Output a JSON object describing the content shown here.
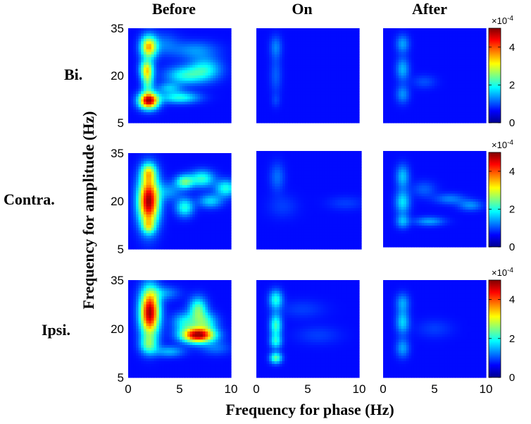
{
  "column_titles": [
    "Before",
    "On",
    "After"
  ],
  "row_labels": [
    "Bi.",
    "Contra.",
    "Ipsi."
  ],
  "xlabel": "Frequency for phase (Hz)",
  "ylabel": "Frequency for amplitude (Hz)",
  "colorbar": {
    "multiplier": "×10",
    "exponent": "-4",
    "ticks": [
      "0",
      "2",
      "4"
    ]
  },
  "x_tick_labels": [
    "0",
    "5",
    "10"
  ],
  "y_tick_labels": [
    "35",
    "20",
    "5"
  ],
  "chart_data": {
    "type": "heatmap",
    "x_range": [
      0,
      10
    ],
    "y_range": [
      5,
      35
    ],
    "color_range": [
      0,
      0.0005
    ],
    "colormap": "jet",
    "panels": [
      {
        "row": "Bi.",
        "column": "Before",
        "blobs": [
          {
            "x": 2.0,
            "y": 29,
            "sx": 0.55,
            "sy": 2.5,
            "v": 0.00033
          },
          {
            "x": 1.8,
            "y": 22,
            "sx": 0.45,
            "sy": 2.0,
            "v": 0.00026
          },
          {
            "x": 2.0,
            "y": 12,
            "sx": 0.65,
            "sy": 1.8,
            "v": 0.0005
          },
          {
            "x": 1.9,
            "y": 18,
            "sx": 0.4,
            "sy": 2.5,
            "v": 0.00018
          },
          {
            "x": 5.5,
            "y": 20,
            "sx": 1.3,
            "sy": 2.0,
            "v": 0.00015
          },
          {
            "x": 7.5,
            "y": 22,
            "sx": 1.1,
            "sy": 2.5,
            "v": 0.00014
          },
          {
            "x": 5.0,
            "y": 13,
            "sx": 1.3,
            "sy": 1.3,
            "v": 0.00016
          },
          {
            "x": 4.0,
            "y": 16,
            "sx": 0.8,
            "sy": 1.2,
            "v": 0.0001
          },
          {
            "x": 6.5,
            "y": 28,
            "sx": 1.5,
            "sy": 2.0,
            "v": 8e-05
          },
          {
            "x": 3.5,
            "y": 30,
            "sx": 1.0,
            "sy": 2.5,
            "v": 6e-05
          }
        ]
      },
      {
        "row": "Bi.",
        "column": "On",
        "blobs": [
          {
            "x": 1.9,
            "y": 29,
            "sx": 0.4,
            "sy": 2.5,
            "v": 7e-05
          },
          {
            "x": 1.9,
            "y": 20,
            "sx": 0.4,
            "sy": 4.0,
            "v": 5e-05
          },
          {
            "x": 1.9,
            "y": 12,
            "sx": 0.3,
            "sy": 1.5,
            "v": 3e-05
          }
        ]
      },
      {
        "row": "Bi.",
        "column": "After",
        "blobs": [
          {
            "x": 1.9,
            "y": 30,
            "sx": 0.45,
            "sy": 2.0,
            "v": 9e-05
          },
          {
            "x": 1.9,
            "y": 22,
            "sx": 0.45,
            "sy": 2.5,
            "v": 0.0001
          },
          {
            "x": 1.9,
            "y": 14,
            "sx": 0.45,
            "sy": 2.0,
            "v": 8e-05
          },
          {
            "x": 4.0,
            "y": 18,
            "sx": 0.8,
            "sy": 1.5,
            "v": 4e-05
          }
        ]
      },
      {
        "row": "Contra.",
        "column": "Before",
        "blobs": [
          {
            "x": 2.0,
            "y": 20,
            "sx": 0.7,
            "sy": 5.5,
            "v": 0.0005
          },
          {
            "x": 2.0,
            "y": 29,
            "sx": 0.5,
            "sy": 2.0,
            "v": 0.0002
          },
          {
            "x": 2.0,
            "y": 12,
            "sx": 0.4,
            "sy": 1.5,
            "v": 0.00014
          },
          {
            "x": 5.5,
            "y": 26,
            "sx": 0.6,
            "sy": 1.5,
            "v": 0.0002
          },
          {
            "x": 5.5,
            "y": 18,
            "sx": 0.6,
            "sy": 2.0,
            "v": 0.00016
          },
          {
            "x": 7.2,
            "y": 27,
            "sx": 0.8,
            "sy": 1.8,
            "v": 0.00017
          },
          {
            "x": 9.5,
            "y": 24,
            "sx": 0.7,
            "sy": 1.8,
            "v": 0.00016
          },
          {
            "x": 8.0,
            "y": 20,
            "sx": 0.8,
            "sy": 1.5,
            "v": 0.00012
          },
          {
            "x": 4.0,
            "y": 23,
            "sx": 0.8,
            "sy": 2.0,
            "v": 8e-05
          }
        ]
      },
      {
        "row": "Contra.",
        "column": "On",
        "blobs": [
          {
            "x": 2.0,
            "y": 27,
            "sx": 0.5,
            "sy": 3.0,
            "v": 6e-05
          },
          {
            "x": 2.5,
            "y": 18,
            "sx": 1.0,
            "sy": 2.5,
            "v": 3e-05
          },
          {
            "x": 8.5,
            "y": 19,
            "sx": 1.2,
            "sy": 1.5,
            "v": 3e-05
          }
        ]
      },
      {
        "row": "Contra.",
        "column": "After",
        "blobs": [
          {
            "x": 1.9,
            "y": 27,
            "sx": 0.45,
            "sy": 2.5,
            "v": 0.00011
          },
          {
            "x": 1.9,
            "y": 19,
            "sx": 0.5,
            "sy": 2.5,
            "v": 0.00013
          },
          {
            "x": 1.9,
            "y": 13,
            "sx": 0.45,
            "sy": 1.5,
            "v": 0.0001
          },
          {
            "x": 4.5,
            "y": 13,
            "sx": 1.0,
            "sy": 1.0,
            "v": 9e-05
          },
          {
            "x": 6.5,
            "y": 20,
            "sx": 1.0,
            "sy": 1.2,
            "v": 7e-05
          },
          {
            "x": 8.5,
            "y": 18,
            "sx": 0.8,
            "sy": 1.2,
            "v": 8e-05
          },
          {
            "x": 4.0,
            "y": 23,
            "sx": 0.8,
            "sy": 1.8,
            "v": 5e-05
          }
        ]
      },
      {
        "row": "Ipsi.",
        "column": "Before",
        "blobs": [
          {
            "x": 2.1,
            "y": 25,
            "sx": 0.65,
            "sy": 5.0,
            "v": 0.0005
          },
          {
            "x": 2.0,
            "y": 15,
            "sx": 0.6,
            "sy": 2.0,
            "v": 0.00016
          },
          {
            "x": 6.8,
            "y": 18,
            "sx": 1.1,
            "sy": 1.6,
            "v": 0.0005
          },
          {
            "x": 6.8,
            "y": 26,
            "sx": 0.6,
            "sy": 2.5,
            "v": 0.0002
          },
          {
            "x": 5.5,
            "y": 22,
            "sx": 0.8,
            "sy": 2.0,
            "v": 0.00014
          },
          {
            "x": 7.5,
            "y": 22,
            "sx": 0.8,
            "sy": 2.0,
            "v": 0.00016
          },
          {
            "x": 4.0,
            "y": 13,
            "sx": 1.0,
            "sy": 1.2,
            "v": 0.0001
          },
          {
            "x": 3.5,
            "y": 31,
            "sx": 1.0,
            "sy": 1.5,
            "v": 8e-05
          },
          {
            "x": 8.5,
            "y": 14,
            "sx": 1.0,
            "sy": 1.5,
            "v": 6e-05
          }
        ]
      },
      {
        "row": "Ipsi.",
        "column": "On",
        "blobs": [
          {
            "x": 1.9,
            "y": 29,
            "sx": 0.45,
            "sy": 2.0,
            "v": 0.00016
          },
          {
            "x": 1.9,
            "y": 21,
            "sx": 0.4,
            "sy": 2.5,
            "v": 0.00018
          },
          {
            "x": 1.9,
            "y": 16,
            "sx": 0.4,
            "sy": 1.5,
            "v": 0.00014
          },
          {
            "x": 1.9,
            "y": 11,
            "sx": 0.4,
            "sy": 1.2,
            "v": 0.0002
          },
          {
            "x": 4.5,
            "y": 26,
            "sx": 1.5,
            "sy": 2.0,
            "v": 3e-05
          },
          {
            "x": 6.0,
            "y": 18,
            "sx": 1.5,
            "sy": 2.0,
            "v": 3e-05
          }
        ]
      },
      {
        "row": "Ipsi.",
        "column": "After",
        "blobs": [
          {
            "x": 1.9,
            "y": 28,
            "sx": 0.45,
            "sy": 2.0,
            "v": 9e-05
          },
          {
            "x": 1.9,
            "y": 22,
            "sx": 0.45,
            "sy": 2.5,
            "v": 0.00012
          },
          {
            "x": 1.9,
            "y": 14,
            "sx": 0.45,
            "sy": 2.0,
            "v": 9e-05
          },
          {
            "x": 5.0,
            "y": 20,
            "sx": 1.2,
            "sy": 2.0,
            "v": 3e-05
          }
        ]
      }
    ]
  }
}
